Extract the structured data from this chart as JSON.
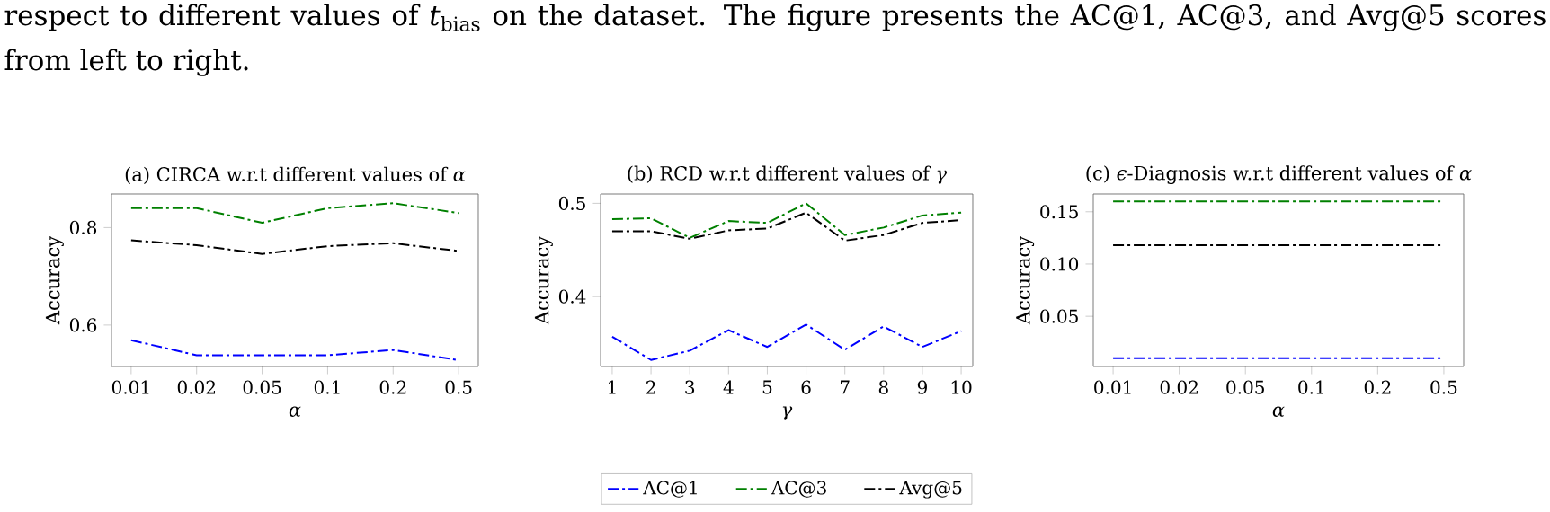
{
  "chart_data": [
    {
      "type": "line",
      "title": "(a) CIRCA w.r.t different values of *α*",
      "xlabel": "*α*",
      "ylabel": "Accuracy",
      "annotations": [
        "respect to different values of *t*$_{bias}$ on the dataset. The figure presents the AC@1, AC@3, and Avg@5 scores from left to right."
      ],
      "categories": [
        "0.01",
        "0.02",
        "0.05",
        "0.1",
        "0.2",
        "0.5"
      ],
      "ylim": [
        0.515,
        0.869
      ],
      "yticks": [
        0.6,
        0.8
      ],
      "line_style": "dashdot",
      "series": [
        {
          "color": "#0000ff",
          "values": [
            0.569,
            0.538,
            0.538,
            0.538,
            0.549,
            0.528
          ]
        },
        {
          "color": "#008000",
          "values": [
            0.84,
            0.84,
            0.81,
            0.84,
            0.85,
            0.83
          ]
        },
        {
          "color": "#000000",
          "values": [
            0.774,
            0.764,
            0.746,
            0.762,
            0.768,
            0.752
          ]
        }
      ]
    },
    {
      "type": "line",
      "title": "(b) RCD w.r.t different values of *γ*",
      "xlabel": "*γ*",
      "ylabel": "Accuracy",
      "categories": [
        "1",
        "2",
        "3",
        "4",
        "5",
        "6",
        "7",
        "8",
        "9",
        "10"
      ],
      "ylim": [
        0.325,
        0.51
      ],
      "yticks": [
        0.4,
        0.5
      ],
      "line_style": "dashdot",
      "legend": "bottom",
      "series": [
        {
          "name": "AC@1",
          "color": "#0000ff",
          "values": [
            0.357,
            0.332,
            0.342,
            0.364,
            0.346,
            0.37,
            0.343,
            0.368,
            0.346,
            0.363
          ]
        },
        {
          "name": "AC@3",
          "color": "#008000",
          "values": [
            0.483,
            0.484,
            0.463,
            0.481,
            0.479,
            0.5,
            0.466,
            0.474,
            0.487,
            0.49
          ]
        },
        {
          "name": "Avg@5",
          "color": "#000000",
          "values": [
            0.47,
            0.47,
            0.462,
            0.471,
            0.473,
            0.49,
            0.46,
            0.466,
            0.479,
            0.482
          ]
        }
      ]
    },
    {
      "type": "line",
      "title": "(c) *ϵ*-Diagnosis w.r.t different values of *α*",
      "xlabel": "*α*",
      "ylabel": "Accuracy",
      "categories": [
        "0.01",
        "0.02",
        "0.05",
        "0.1",
        "0.2",
        "0.5"
      ],
      "ylim": [
        0.002,
        0.167
      ],
      "yticks": [
        0.05,
        {
          "value": 0.1,
          "label": "0.10"
        },
        0.15
      ],
      "line_style": "dashdot",
      "series": [
        {
          "color": "#0000ff",
          "values": [
            0.01,
            0.01,
            0.01,
            0.01,
            0.01,
            0.01
          ]
        },
        {
          "color": "#008000",
          "values": [
            0.16,
            0.16,
            0.16,
            0.16,
            0.16,
            0.16
          ]
        },
        {
          "color": "#000000",
          "values": [
            0.118,
            0.118,
            0.118,
            0.118,
            0.118,
            0.118
          ]
        }
      ]
    }
  ]
}
